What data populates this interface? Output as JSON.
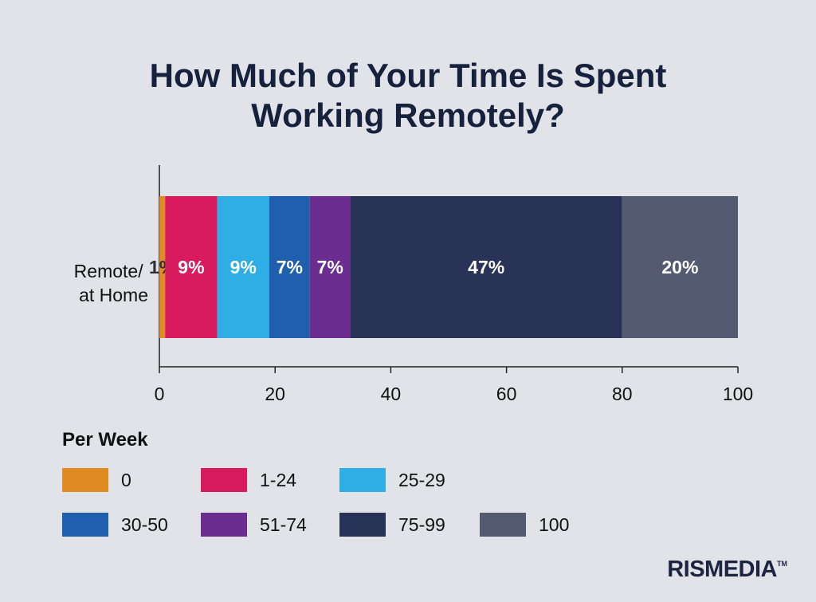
{
  "chart_data": {
    "type": "bar",
    "orientation": "horizontal",
    "stacked": true,
    "title_lines": [
      "How Much of Your Time Is Spent",
      "Working Remotely?"
    ],
    "category_label_lines": [
      "Remote/",
      "at Home"
    ],
    "xlim": [
      0,
      100
    ],
    "xticks": [
      "0",
      "20",
      "40",
      "60",
      "80",
      "100"
    ],
    "grid": false,
    "legend_title": "Per Week",
    "legend_position": "bottom",
    "series": [
      {
        "name": "0",
        "value": 1,
        "label": "1%",
        "color": "#e08c22"
      },
      {
        "name": "1-24",
        "value": 9,
        "label": "9%",
        "color": "#d81b5d"
      },
      {
        "name": "25-29",
        "value": 9,
        "label": "9%",
        "color": "#2faee6"
      },
      {
        "name": "30-50",
        "value": 7,
        "label": "7%",
        "color": "#1f5fae"
      },
      {
        "name": "51-74",
        "value": 7,
        "label": "7%",
        "color": "#6c2d91"
      },
      {
        "name": "75-99",
        "value": 47,
        "label": "47%",
        "color": "#283357"
      },
      {
        "name": "100",
        "value": 20,
        "label": "20%",
        "color": "#545a70"
      }
    ]
  },
  "brand": {
    "logo_text": "RISMEDIA",
    "trademark": "TM"
  }
}
